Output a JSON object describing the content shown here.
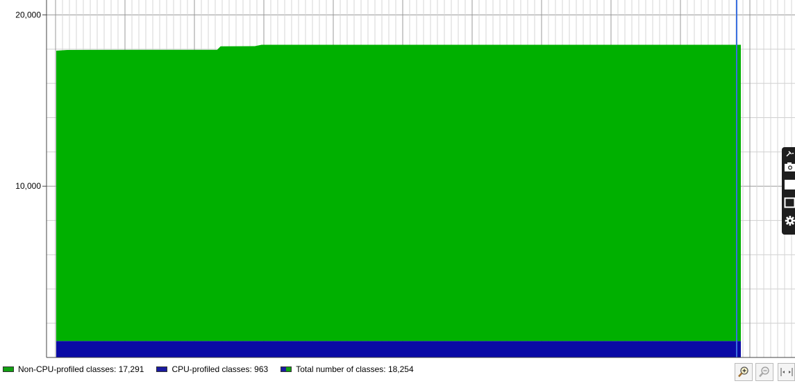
{
  "chart_data": {
    "type": "area",
    "stacked": true,
    "x_index": [
      0,
      0.016,
      0.12,
      0.235,
      0.24,
      0.29,
      0.3,
      1.0
    ],
    "series": [
      {
        "name": "CPU-profiled classes",
        "color": "#0a0aa5",
        "values": [
          963,
          963,
          963,
          963,
          963,
          963,
          963,
          963
        ]
      },
      {
        "name": "Non-CPU-profiled classes",
        "color": "#00b000",
        "values": [
          16950,
          16990,
          17000,
          17000,
          17200,
          17210,
          17291,
          17291
        ]
      }
    ],
    "y_ticks": [
      "10,000",
      "20,000"
    ],
    "ylim": [
      0,
      20870
    ],
    "grid": true,
    "cursor_line_color": "#3a6fe0"
  },
  "legend": [
    {
      "label": "Non-CPU-profiled classes:",
      "value": "17,291",
      "swatch_color": "#12a012"
    },
    {
      "label": "CPU-profiled classes:",
      "value": "963",
      "swatch_color": "#1a1aa0"
    },
    {
      "label": "Total number of classes:",
      "value": "18,254",
      "swatch_color": "split"
    }
  ],
  "toolbar": {
    "zoom_in_icon": "zoom-in-icon",
    "zoom_out_icon": "zoom-out-icon",
    "fit_icon": "fit-width-icon"
  },
  "side_toolbar": [
    "pin-icon",
    "camera-icon",
    "white-square-icon",
    "window-icon",
    "gear-icon"
  ]
}
